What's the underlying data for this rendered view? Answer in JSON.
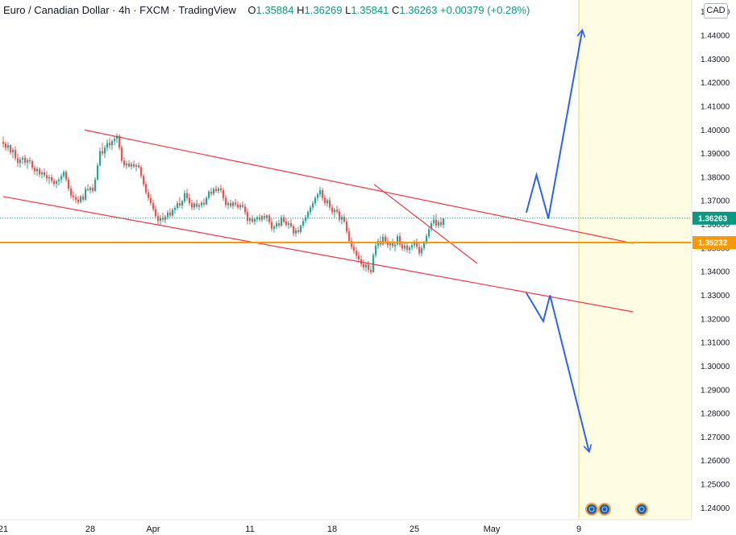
{
  "header": {
    "symbol": "Euro / Canadian Dollar",
    "interval": "4h",
    "exchange": "FXCM",
    "platform": "TradingView",
    "open_label": "O",
    "open": "1.35884",
    "high_label": "H",
    "high": "1.36269",
    "low_label": "L",
    "low": "1.35841",
    "close_label": "C",
    "close": "1.36263",
    "change": "+0.00379 (+0.28%)"
  },
  "currency": "CAD",
  "colors": {
    "up": "#26a69a",
    "down": "#ef5350",
    "channel": "#f23645",
    "support": "#ff9800",
    "projection": "#2962ff",
    "forecast_area": "#fefce3",
    "last_price": "#089981"
  },
  "chart_data": {
    "type": "candlestick",
    "y_axis": {
      "min": 1.235,
      "max": 1.455,
      "ticks": [
        "1.45000",
        "1.44000",
        "1.43000",
        "1.42000",
        "1.41000",
        "1.40000",
        "1.39000",
        "1.38000",
        "1.37000",
        "1.36000",
        "1.35000",
        "1.34000",
        "1.33000",
        "1.32000",
        "1.31000",
        "1.30000",
        "1.29000",
        "1.28000",
        "1.27000",
        "1.26000",
        "1.25000",
        "1.24000"
      ]
    },
    "x_axis": {
      "ticks": [
        {
          "label": "21",
          "bar": 0
        },
        {
          "label": "28",
          "bar": 36
        },
        {
          "label": "Apr",
          "bar": 62
        },
        {
          "label": "11",
          "bar": 102
        },
        {
          "label": "18",
          "bar": 136
        },
        {
          "label": "25",
          "bar": 170
        },
        {
          "label": "May",
          "bar": 202
        },
        {
          "label": "9",
          "bar": 238
        }
      ]
    },
    "candles": [
      [
        1.395,
        1.3972,
        1.3925,
        1.3942
      ],
      [
        1.3942,
        1.395,
        1.3912,
        1.3925
      ],
      [
        1.3925,
        1.3948,
        1.391,
        1.3935
      ],
      [
        1.3935,
        1.394,
        1.3895,
        1.3905
      ],
      [
        1.3905,
        1.3925,
        1.388,
        1.3915
      ],
      [
        1.3915,
        1.393,
        1.387,
        1.388
      ],
      [
        1.388,
        1.39,
        1.3845,
        1.386
      ],
      [
        1.386,
        1.3885,
        1.384,
        1.3875
      ],
      [
        1.3875,
        1.389,
        1.3855,
        1.3882
      ],
      [
        1.3882,
        1.3895,
        1.385,
        1.3862
      ],
      [
        1.3862,
        1.388,
        1.3835,
        1.3872
      ],
      [
        1.3872,
        1.3885,
        1.3855,
        1.3868
      ],
      [
        1.3868,
        1.3875,
        1.383,
        1.384
      ],
      [
        1.384,
        1.385,
        1.381,
        1.3825
      ],
      [
        1.3825,
        1.3845,
        1.3805,
        1.3835
      ],
      [
        1.3835,
        1.3842,
        1.38,
        1.3812
      ],
      [
        1.3812,
        1.383,
        1.3795,
        1.382
      ],
      [
        1.382,
        1.3838,
        1.38,
        1.3808
      ],
      [
        1.3808,
        1.3825,
        1.378,
        1.3795
      ],
      [
        1.3795,
        1.381,
        1.377,
        1.38
      ],
      [
        1.38,
        1.3812,
        1.3775,
        1.3785
      ],
      [
        1.3785,
        1.3795,
        1.376,
        1.3772
      ],
      [
        1.3772,
        1.379,
        1.3755,
        1.3782
      ],
      [
        1.3782,
        1.38,
        1.3765,
        1.379
      ],
      [
        1.379,
        1.3815,
        1.3775,
        1.3805
      ],
      [
        1.3805,
        1.383,
        1.3795,
        1.3822
      ],
      [
        1.3822,
        1.383,
        1.378,
        1.379
      ],
      [
        1.379,
        1.38,
        1.374,
        1.3752
      ],
      [
        1.3752,
        1.3765,
        1.371,
        1.3722
      ],
      [
        1.3722,
        1.374,
        1.37,
        1.3715
      ],
      [
        1.3715,
        1.3728,
        1.369,
        1.3705
      ],
      [
        1.3705,
        1.372,
        1.3685,
        1.3695
      ],
      [
        1.3695,
        1.3725,
        1.3688,
        1.3718
      ],
      [
        1.3718,
        1.373,
        1.3695,
        1.3705
      ],
      [
        1.3705,
        1.376,
        1.37,
        1.375
      ],
      [
        1.375,
        1.377,
        1.374,
        1.3745
      ],
      [
        1.3745,
        1.3762,
        1.373,
        1.3755
      ],
      [
        1.3755,
        1.377,
        1.3735,
        1.3742
      ],
      [
        1.3742,
        1.38,
        1.3738,
        1.379
      ],
      [
        1.379,
        1.386,
        1.3785,
        1.385
      ],
      [
        1.385,
        1.3925,
        1.3845,
        1.391
      ],
      [
        1.391,
        1.3945,
        1.389,
        1.39
      ],
      [
        1.39,
        1.3935,
        1.388,
        1.3925
      ],
      [
        1.3925,
        1.396,
        1.391,
        1.3945
      ],
      [
        1.3945,
        1.3965,
        1.392,
        1.3935
      ],
      [
        1.3935,
        1.396,
        1.3915,
        1.3952
      ],
      [
        1.3952,
        1.3975,
        1.3935,
        1.3962
      ],
      [
        1.3962,
        1.3985,
        1.3945,
        1.3975
      ],
      [
        1.3975,
        1.3982,
        1.3915,
        1.3925
      ],
      [
        1.3925,
        1.3935,
        1.386,
        1.387
      ],
      [
        1.387,
        1.3885,
        1.384,
        1.385
      ],
      [
        1.385,
        1.387,
        1.3835,
        1.3858
      ],
      [
        1.3858,
        1.3872,
        1.384,
        1.3845
      ],
      [
        1.3845,
        1.3865,
        1.3832,
        1.3855
      ],
      [
        1.3855,
        1.387,
        1.3838,
        1.3845
      ],
      [
        1.3845,
        1.3858,
        1.3825,
        1.385
      ],
      [
        1.385,
        1.3862,
        1.3838,
        1.3842
      ],
      [
        1.3842,
        1.385,
        1.3795,
        1.3805
      ],
      [
        1.3805,
        1.3815,
        1.376,
        1.377
      ],
      [
        1.377,
        1.3782,
        1.3725,
        1.3735
      ],
      [
        1.3735,
        1.375,
        1.37,
        1.3712
      ],
      [
        1.3712,
        1.3728,
        1.368,
        1.369
      ],
      [
        1.369,
        1.3705,
        1.3655,
        1.3665
      ],
      [
        1.3665,
        1.368,
        1.3625,
        1.3635
      ],
      [
        1.3635,
        1.3652,
        1.36,
        1.3615
      ],
      [
        1.3615,
        1.364,
        1.3595,
        1.3628
      ],
      [
        1.3628,
        1.365,
        1.361,
        1.362
      ],
      [
        1.362,
        1.364,
        1.3605,
        1.3632
      ],
      [
        1.3632,
        1.366,
        1.362,
        1.365
      ],
      [
        1.365,
        1.3668,
        1.3628,
        1.3638
      ],
      [
        1.3638,
        1.367,
        1.363,
        1.3662
      ],
      [
        1.3662,
        1.368,
        1.3645,
        1.367
      ],
      [
        1.367,
        1.37,
        1.366,
        1.369
      ],
      [
        1.369,
        1.3715,
        1.367,
        1.368
      ],
      [
        1.368,
        1.3705,
        1.3665,
        1.3698
      ],
      [
        1.3698,
        1.3745,
        1.369,
        1.3732
      ],
      [
        1.3732,
        1.375,
        1.37,
        1.3712
      ],
      [
        1.3712,
        1.373,
        1.368,
        1.369
      ],
      [
        1.369,
        1.3705,
        1.366,
        1.3672
      ],
      [
        1.3672,
        1.3695,
        1.366,
        1.3688
      ],
      [
        1.3688,
        1.3705,
        1.3668,
        1.3675
      ],
      [
        1.3675,
        1.369,
        1.366,
        1.3682
      ],
      [
        1.3682,
        1.37,
        1.367,
        1.3692
      ],
      [
        1.3692,
        1.371,
        1.3675,
        1.3685
      ],
      [
        1.3685,
        1.372,
        1.368,
        1.3712
      ],
      [
        1.3712,
        1.3745,
        1.3705,
        1.3738
      ],
      [
        1.3738,
        1.3755,
        1.372,
        1.373
      ],
      [
        1.373,
        1.3758,
        1.3722,
        1.375
      ],
      [
        1.375,
        1.3765,
        1.3735,
        1.3742
      ],
      [
        1.3742,
        1.376,
        1.373,
        1.3752
      ],
      [
        1.3752,
        1.3768,
        1.3735,
        1.3745
      ],
      [
        1.3745,
        1.3755,
        1.37,
        1.3712
      ],
      [
        1.3712,
        1.3725,
        1.3672,
        1.3682
      ],
      [
        1.3682,
        1.3698,
        1.3665,
        1.369
      ],
      [
        1.369,
        1.3705,
        1.367,
        1.3678
      ],
      [
        1.3678,
        1.37,
        1.3665,
        1.3692
      ],
      [
        1.3692,
        1.3708,
        1.3675,
        1.3685
      ],
      [
        1.3685,
        1.3698,
        1.3665,
        1.3672
      ],
      [
        1.3672,
        1.369,
        1.366,
        1.3682
      ],
      [
        1.3682,
        1.3698,
        1.3668,
        1.3675
      ],
      [
        1.3675,
        1.3688,
        1.364,
        1.3652
      ],
      [
        1.3652,
        1.3668,
        1.36,
        1.3615
      ],
      [
        1.3615,
        1.3632,
        1.36,
        1.3625
      ],
      [
        1.3625,
        1.364,
        1.3605,
        1.3612
      ],
      [
        1.3612,
        1.363,
        1.3598,
        1.3622
      ],
      [
        1.3622,
        1.3638,
        1.361,
        1.363
      ],
      [
        1.363,
        1.3645,
        1.3612,
        1.362
      ],
      [
        1.362,
        1.364,
        1.361,
        1.3635
      ],
      [
        1.3635,
        1.3648,
        1.3618,
        1.3628
      ],
      [
        1.3628,
        1.3642,
        1.3612,
        1.3638
      ],
      [
        1.3638,
        1.3645,
        1.36,
        1.361
      ],
      [
        1.361,
        1.3625,
        1.357,
        1.3582
      ],
      [
        1.3582,
        1.3598,
        1.3565,
        1.359
      ],
      [
        1.359,
        1.3615,
        1.358,
        1.3605
      ],
      [
        1.3605,
        1.362,
        1.3585,
        1.3595
      ],
      [
        1.3595,
        1.364,
        1.359,
        1.363
      ],
      [
        1.363,
        1.3642,
        1.3605,
        1.3612
      ],
      [
        1.3612,
        1.3628,
        1.359,
        1.3598
      ],
      [
        1.3598,
        1.3615,
        1.358,
        1.3605
      ],
      [
        1.3605,
        1.3622,
        1.3585,
        1.3592
      ],
      [
        1.3592,
        1.36,
        1.355,
        1.3562
      ],
      [
        1.3562,
        1.3585,
        1.3548,
        1.3575
      ],
      [
        1.3575,
        1.359,
        1.356,
        1.3568
      ],
      [
        1.3568,
        1.36,
        1.356,
        1.3595
      ],
      [
        1.3595,
        1.3625,
        1.3585,
        1.3615
      ],
      [
        1.3615,
        1.364,
        1.3605,
        1.363
      ],
      [
        1.363,
        1.366,
        1.362,
        1.3652
      ],
      [
        1.3652,
        1.368,
        1.364,
        1.3672
      ],
      [
        1.3672,
        1.37,
        1.366,
        1.369
      ],
      [
        1.369,
        1.372,
        1.368,
        1.3712
      ],
      [
        1.3712,
        1.3735,
        1.37,
        1.3728
      ],
      [
        1.3728,
        1.376,
        1.3715,
        1.3745
      ],
      [
        1.3745,
        1.3755,
        1.37,
        1.3712
      ],
      [
        1.3712,
        1.3725,
        1.368,
        1.369
      ],
      [
        1.369,
        1.371,
        1.3675,
        1.3702
      ],
      [
        1.3702,
        1.3715,
        1.366,
        1.3672
      ],
      [
        1.3672,
        1.3685,
        1.364,
        1.3652
      ],
      [
        1.3652,
        1.367,
        1.363,
        1.3662
      ],
      [
        1.3662,
        1.368,
        1.3645,
        1.3655
      ],
      [
        1.3655,
        1.3668,
        1.361,
        1.362
      ],
      [
        1.362,
        1.364,
        1.36,
        1.3632
      ],
      [
        1.3632,
        1.3645,
        1.3605,
        1.3612
      ],
      [
        1.3612,
        1.3625,
        1.356,
        1.357
      ],
      [
        1.357,
        1.3585,
        1.352,
        1.353
      ],
      [
        1.353,
        1.3545,
        1.3495,
        1.3505
      ],
      [
        1.3505,
        1.352,
        1.3475,
        1.3488
      ],
      [
        1.3488,
        1.3505,
        1.3455,
        1.3468
      ],
      [
        1.3468,
        1.3485,
        1.344,
        1.3452
      ],
      [
        1.3452,
        1.347,
        1.342,
        1.3432
      ],
      [
        1.3432,
        1.345,
        1.3405,
        1.3418
      ],
      [
        1.3418,
        1.344,
        1.34,
        1.343
      ],
      [
        1.343,
        1.3445,
        1.3395,
        1.3408
      ],
      [
        1.3408,
        1.3425,
        1.3388,
        1.3398
      ],
      [
        1.3398,
        1.348,
        1.3395,
        1.347
      ],
      [
        1.347,
        1.352,
        1.346,
        1.351
      ],
      [
        1.351,
        1.354,
        1.3495,
        1.353
      ],
      [
        1.353,
        1.355,
        1.3505,
        1.3515
      ],
      [
        1.3515,
        1.356,
        1.351,
        1.3548
      ],
      [
        1.3548,
        1.356,
        1.3515,
        1.3528
      ],
      [
        1.3528,
        1.3545,
        1.35,
        1.3512
      ],
      [
        1.3512,
        1.353,
        1.349,
        1.352
      ],
      [
        1.352,
        1.354,
        1.35,
        1.3508
      ],
      [
        1.3508,
        1.3525,
        1.3485,
        1.3515
      ],
      [
        1.3515,
        1.356,
        1.351,
        1.355
      ],
      [
        1.355,
        1.3565,
        1.3505,
        1.3515
      ],
      [
        1.3515,
        1.353,
        1.3488,
        1.3498
      ],
      [
        1.3498,
        1.352,
        1.3485,
        1.351
      ],
      [
        1.351,
        1.3525,
        1.348,
        1.3492
      ],
      [
        1.3492,
        1.351,
        1.3475,
        1.3502
      ],
      [
        1.3502,
        1.352,
        1.349,
        1.3512
      ],
      [
        1.3512,
        1.3535,
        1.35,
        1.3528
      ],
      [
        1.3528,
        1.354,
        1.3495,
        1.3505
      ],
      [
        1.3505,
        1.352,
        1.3468,
        1.3478
      ],
      [
        1.3478,
        1.351,
        1.3465,
        1.35
      ],
      [
        1.35,
        1.353,
        1.349,
        1.3522
      ],
      [
        1.3522,
        1.356,
        1.3515,
        1.355
      ],
      [
        1.355,
        1.359,
        1.354,
        1.358
      ],
      [
        1.358,
        1.3615,
        1.357,
        1.3605
      ],
      [
        1.3605,
        1.364,
        1.3595,
        1.362
      ],
      [
        1.362,
        1.3645,
        1.3585,
        1.3595
      ],
      [
        1.3595,
        1.362,
        1.3584,
        1.361
      ],
      [
        1.361,
        1.363,
        1.3588,
        1.3598
      ],
      [
        1.3598,
        1.3626,
        1.3584,
        1.3626
      ]
    ],
    "channel_upper": [
      [
        0.48,
        1.4
      ],
      [
        3.72,
        1.352
      ]
    ],
    "channel_lower": [
      [
        0.0,
        1.3718
      ],
      [
        3.72,
        1.323
      ]
    ],
    "inner_trendline": [
      [
        2.19,
        1.377
      ],
      [
        2.8,
        1.3435
      ]
    ],
    "support_level": 1.35232,
    "last_price": 1.36263,
    "price_labels": [
      "1.36263",
      "1.35232"
    ],
    "projection_up": [
      [
        3.09,
        1.365
      ],
      [
        3.15,
        1.381
      ],
      [
        3.22,
        1.3625
      ],
      [
        3.42,
        1.442
      ]
    ],
    "projection_down": [
      [
        3.09,
        1.331
      ],
      [
        3.19,
        1.319
      ],
      [
        3.23,
        1.33
      ],
      [
        3.46,
        1.264
      ]
    ],
    "events_markers": 3
  }
}
